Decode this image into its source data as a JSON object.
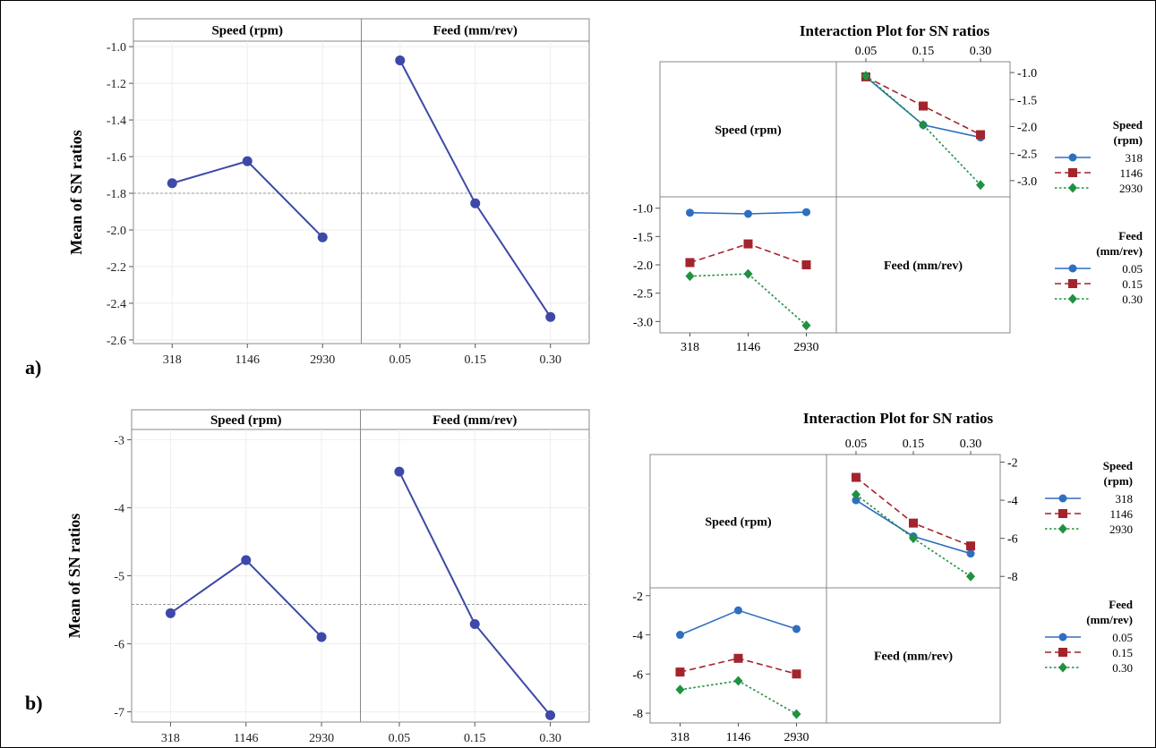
{
  "chart_data": [
    {
      "type": "line",
      "panel_label": "a)",
      "ylabel": "Mean of SN ratios",
      "ylim": [
        -2.62,
        -0.97
      ],
      "yticks": [
        -1.0,
        -1.2,
        -1.4,
        -1.6,
        -1.8,
        -2.0,
        -2.2,
        -2.4,
        -2.6
      ],
      "ytick_labels": [
        "-1.0",
        "-1.2",
        "-1.4",
        "-1.6",
        "-1.8",
        "-2.0",
        "-2.2",
        "-2.4",
        "-2.6"
      ],
      "grand_mean": -1.8,
      "factors": [
        {
          "name": "Speed (rpm)",
          "categories": [
            "318",
            "1146",
            "2930"
          ],
          "values": [
            -1.745,
            -1.625,
            -2.04
          ]
        },
        {
          "name": "Feed (mm/rev)",
          "categories": [
            "0.05",
            "0.15",
            "0.30"
          ],
          "values": [
            -1.075,
            -1.855,
            -2.475
          ]
        }
      ],
      "color": "#3d48a8"
    },
    {
      "type": "line",
      "title": "Interaction Plot for SN ratios",
      "x_categories": [
        "0.05",
        "0.15",
        "0.30"
      ],
      "speed_categories": [
        "318",
        "1146",
        "2930"
      ],
      "feed_categories": [
        "0.05",
        "0.15",
        "0.30"
      ],
      "right_axis": {
        "ylim": [
          -3.3,
          -0.8
        ],
        "ticks": [
          -1.0,
          -1.5,
          -2.0,
          -2.5,
          -3.0
        ],
        "tick_labels": [
          "-1.0",
          "-1.5",
          "-2.0",
          "-2.5",
          "-3.0"
        ]
      },
      "left_axis": {
        "ylim": [
          -3.2,
          -0.8
        ],
        "ticks": [
          -1.0,
          -1.5,
          -2.0,
          -2.5,
          -3.0
        ],
        "tick_labels": [
          "-1.0",
          "-1.5",
          "-2.0",
          "-2.5",
          "-3.0"
        ]
      },
      "diag_labels": [
        "Speed (rpm)",
        "Feed (mm/rev)"
      ],
      "speed_series": [
        {
          "name": "318",
          "values": [
            -1.08,
            -1.97,
            -2.2
          ]
        },
        {
          "name": "1146",
          "values": [
            -1.08,
            -1.62,
            -2.15
          ]
        },
        {
          "name": "2930",
          "values": [
            -1.06,
            -1.97,
            -3.08
          ]
        }
      ],
      "feed_series": [
        {
          "name": "0.05",
          "values": [
            -1.08,
            -1.1,
            -1.07
          ]
        },
        {
          "name": "0.15",
          "values": [
            -1.96,
            -1.63,
            -2.0
          ]
        },
        {
          "name": "0.30",
          "values": [
            -2.2,
            -2.16,
            -3.07
          ]
        }
      ],
      "legend_speed": {
        "title_line1": "Speed",
        "title_line2": "(rpm)",
        "entries": [
          "318",
          "1146",
          "2930"
        ]
      },
      "legend_feed": {
        "title_line1": "Feed",
        "title_line2": "(mm/rev)",
        "entries": [
          "0.05",
          "0.15",
          "0.30"
        ]
      }
    },
    {
      "type": "line",
      "panel_label": "b)",
      "ylabel": "Mean of SN ratios",
      "ylim": [
        -7.15,
        -2.85
      ],
      "yticks": [
        -3,
        -4,
        -5,
        -6,
        -7
      ],
      "ytick_labels": [
        "-3",
        "-4",
        "-5",
        "-6",
        "-7"
      ],
      "grand_mean": -5.42,
      "factors": [
        {
          "name": "Speed (rpm)",
          "categories": [
            "318",
            "1146",
            "2930"
          ],
          "values": [
            -5.55,
            -4.77,
            -5.9
          ]
        },
        {
          "name": "Feed (mm/rev)",
          "categories": [
            "0.05",
            "0.15",
            "0.30"
          ],
          "values": [
            -3.47,
            -5.71,
            -7.05
          ]
        }
      ],
      "color": "#3d48a8"
    },
    {
      "type": "line",
      "title": "Interaction Plot for SN ratios",
      "x_categories": [
        "0.05",
        "0.15",
        "0.30"
      ],
      "speed_categories": [
        "318",
        "1146",
        "2930"
      ],
      "feed_categories": [
        "0.05",
        "0.15",
        "0.30"
      ],
      "right_axis": {
        "ylim": [
          -8.6,
          -1.6
        ],
        "ticks": [
          -2,
          -4,
          -6,
          -8
        ],
        "tick_labels": [
          "-2",
          "-4",
          "-6",
          "-8"
        ]
      },
      "left_axis": {
        "ylim": [
          -8.5,
          -1.6
        ],
        "ticks": [
          -2,
          -4,
          -6,
          -8
        ],
        "tick_labels": [
          "-2",
          "-4",
          "-6",
          "-8"
        ]
      },
      "diag_labels": [
        "Speed (rpm)",
        "Feed (mm/rev)"
      ],
      "speed_series": [
        {
          "name": "318",
          "values": [
            -4.0,
            -5.9,
            -6.8
          ]
        },
        {
          "name": "1146",
          "values": [
            -2.8,
            -5.2,
            -6.4
          ]
        },
        {
          "name": "2930",
          "values": [
            -3.7,
            -6.0,
            -8.0
          ]
        }
      ],
      "feed_series": [
        {
          "name": "0.05",
          "values": [
            -4.0,
            -2.75,
            -3.7
          ]
        },
        {
          "name": "0.15",
          "values": [
            -5.9,
            -5.2,
            -6.0
          ]
        },
        {
          "name": "0.30",
          "values": [
            -6.8,
            -6.35,
            -8.05
          ]
        }
      ],
      "legend_speed": {
        "title_line1": "Speed",
        "title_line2": "(rpm)",
        "entries": [
          "318",
          "1146",
          "2930"
        ]
      },
      "legend_feed": {
        "title_line1": "Feed",
        "title_line2": "(mm/rev)",
        "entries": [
          "0.05",
          "0.15",
          "0.30"
        ]
      }
    }
  ],
  "series_colors": [
    "#2e6fc0",
    "#a3242c",
    "#1f9140"
  ],
  "series_markers": [
    "circle",
    "square",
    "diamond"
  ],
  "series_dashes": [
    "solid",
    "dashed",
    "dotted"
  ]
}
